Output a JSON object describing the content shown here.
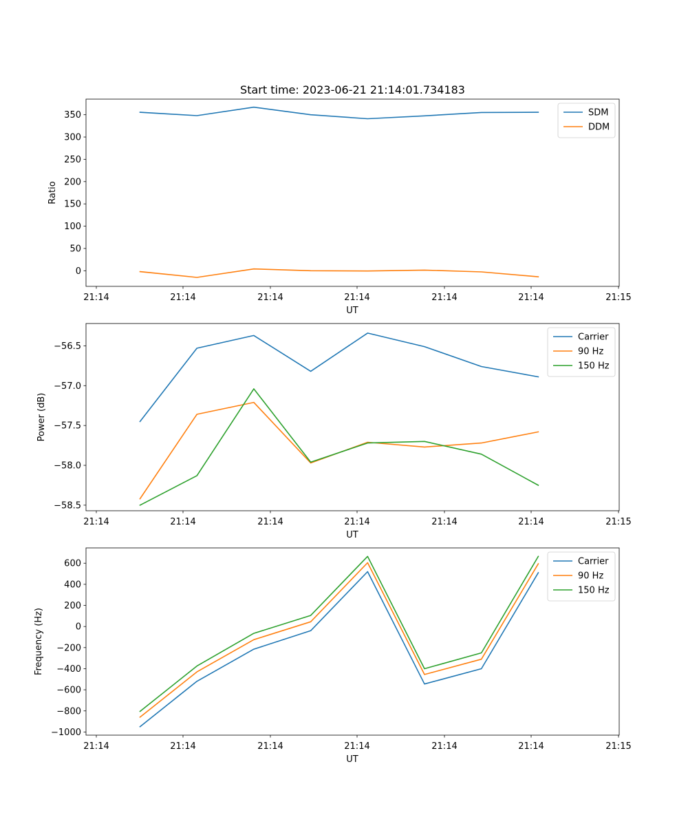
{
  "figure": {
    "title": "Start time: 2023-06-21 21:14:01.734183"
  },
  "colors": {
    "blue": "#1f77b4",
    "orange": "#ff7f0e",
    "green": "#2ca02c"
  },
  "chart_data": [
    {
      "type": "line",
      "ylabel": "Ratio",
      "xlabel": "UT",
      "x_tick_labels": [
        "21:14",
        "21:14",
        "21:14",
        "21:14",
        "21:14",
        "21:14",
        "21:14"
      ],
      "x_tick_last_label": "21:15",
      "ylim": [
        -35,
        385
      ],
      "yticks": [
        0,
        50,
        100,
        150,
        200,
        250,
        300,
        350
      ],
      "legend": "top-right",
      "x": [
        1,
        2,
        3,
        4,
        5,
        6,
        7,
        8
      ],
      "series": [
        {
          "name": "SDM",
          "color": "#1f77b4",
          "values": [
            355.5,
            348,
            367,
            350,
            341,
            347.5,
            355,
            355.5
          ]
        },
        {
          "name": "DDM",
          "color": "#ff7f0e",
          "values": [
            -2,
            -15,
            4,
            0,
            -0.5,
            1.5,
            -2.5,
            -13.5
          ]
        }
      ]
    },
    {
      "type": "line",
      "ylabel": "Power (dB)",
      "xlabel": "UT",
      "x_tick_labels": [
        "21:14",
        "21:14",
        "21:14",
        "21:14",
        "21:14",
        "21:14",
        "21:14"
      ],
      "x_tick_last_label": "21:15",
      "ylim": [
        -58.57,
        -56.22
      ],
      "yticks": [
        -58.5,
        -58.0,
        -57.5,
        -57.0,
        -56.5
      ],
      "legend": "top-right",
      "x": [
        1,
        2,
        3,
        4,
        5,
        6,
        7,
        8
      ],
      "series": [
        {
          "name": "Carrier",
          "color": "#1f77b4",
          "values": [
            -57.45,
            -56.53,
            -56.37,
            -56.82,
            -56.34,
            -56.51,
            -56.76,
            -56.89
          ]
        },
        {
          "name": "90 Hz",
          "color": "#ff7f0e",
          "values": [
            -58.42,
            -57.36,
            -57.21,
            -57.97,
            -57.71,
            -57.77,
            -57.72,
            -57.58
          ]
        },
        {
          "name": "150 Hz",
          "color": "#2ca02c",
          "values": [
            -58.5,
            -58.13,
            -57.04,
            -57.96,
            -57.72,
            -57.7,
            -57.86,
            -58.25
          ]
        }
      ]
    },
    {
      "type": "line",
      "ylabel": "Frequency (Hz)",
      "xlabel": "UT",
      "x_tick_labels": [
        "21:14",
        "21:14",
        "21:14",
        "21:14",
        "21:14",
        "21:14",
        "21:14"
      ],
      "x_tick_last_label": "21:15",
      "ylim": [
        -1030,
        745
      ],
      "yticks": [
        -1000,
        -800,
        -600,
        -400,
        -200,
        0,
        200,
        400,
        600
      ],
      "legend": "top-right",
      "x": [
        1,
        2,
        3,
        4,
        5,
        6,
        7,
        8
      ],
      "series": [
        {
          "name": "Carrier",
          "color": "#1f77b4",
          "values": [
            -950,
            -520,
            -215,
            -40,
            520,
            -545,
            -400,
            510
          ]
        },
        {
          "name": "90 Hz",
          "color": "#ff7f0e",
          "values": [
            -860,
            -430,
            -125,
            45,
            605,
            -455,
            -310,
            595
          ]
        },
        {
          "name": "150 Hz",
          "color": "#2ca02c",
          "values": [
            -805,
            -375,
            -65,
            105,
            665,
            -400,
            -250,
            665
          ]
        }
      ]
    }
  ]
}
